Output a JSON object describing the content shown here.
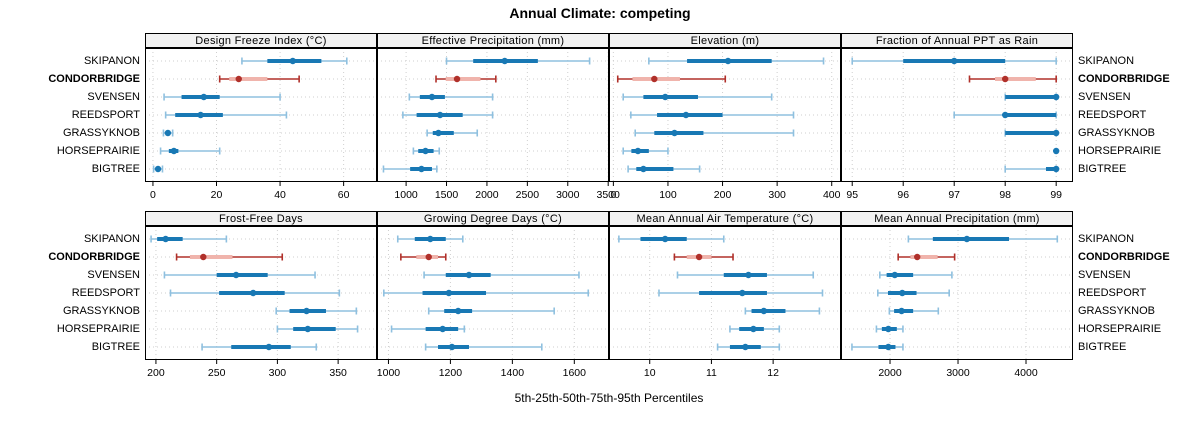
{
  "title": "Annual Climate: competing",
  "footer": "5th-25th-50th-75th-95th Percentiles",
  "sites": [
    {
      "name": "SKIPANON",
      "highlight": false
    },
    {
      "name": "CONDORBRIDGE",
      "highlight": true
    },
    {
      "name": "SVENSEN",
      "highlight": false
    },
    {
      "name": "REEDSPORT",
      "highlight": false
    },
    {
      "name": "GRASSYKNOB",
      "highlight": false
    },
    {
      "name": "HORSEPRAIRIE",
      "highlight": false
    },
    {
      "name": "BIGTREE",
      "highlight": false
    }
  ],
  "colors": {
    "normal_line": "#8FC0DF",
    "normal_band": "#1878B4",
    "normal_dot": "#1878B4",
    "highlight_line": "#B0302A",
    "highlight_band": "#F0B4AC",
    "highlight_dot": "#B0302A",
    "grid": "#CFCFCF",
    "strip_bg": "#F2F2F2",
    "border": "#000000",
    "text": "#000000"
  },
  "chart_data": {
    "type": "dotplot-percentiles",
    "percentiles": [
      5,
      25,
      50,
      75,
      95
    ],
    "site_order": [
      "SKIPANON",
      "CONDORBRIDGE",
      "SVENSEN",
      "REEDSPORT",
      "GRASSYKNOB",
      "HORSEPRAIRIE",
      "BIGTREE"
    ],
    "legend": "median dot with 5-95 range line and 25-75 thick band; CONDORBRIDGE highlighted red",
    "panels": [
      {
        "title": "Design Freeze Index (°C)",
        "xlim": [
          -2.5,
          70.5
        ],
        "ticks": [
          0,
          20,
          40,
          60
        ],
        "values": [
          [
            28,
            36,
            44,
            53,
            61
          ],
          [
            21,
            24,
            27,
            36,
            46
          ],
          [
            3.5,
            9,
            16,
            21,
            40
          ],
          [
            4,
            7,
            15,
            22,
            42
          ],
          [
            3.3,
            4,
            4.7,
            5.5,
            6.2
          ],
          [
            2.4,
            5,
            6.6,
            8,
            21
          ],
          [
            0.2,
            0.8,
            1.6,
            2.3,
            3
          ]
        ]
      },
      {
        "title": "Effective Precipitation (mm)",
        "xlim": [
          640,
          3510
        ],
        "ticks": [
          1000,
          1500,
          2000,
          2500,
          3000,
          3500
        ],
        "values": [
          [
            1500,
            1830,
            2220,
            2630,
            3270
          ],
          [
            1370,
            1490,
            1630,
            1920,
            2110
          ],
          [
            1040,
            1170,
            1320,
            1480,
            2070
          ],
          [
            960,
            1130,
            1420,
            1700,
            2070
          ],
          [
            1260,
            1330,
            1400,
            1590,
            1880
          ],
          [
            1090,
            1150,
            1240,
            1340,
            1410
          ],
          [
            720,
            1050,
            1190,
            1320,
            1380
          ]
        ]
      },
      {
        "title": "Elevation (m)",
        "xlim": [
          -8,
          417
        ],
        "ticks": [
          0,
          100,
          200,
          300,
          400
        ],
        "values": [
          [
            65,
            135,
            210,
            290,
            385
          ],
          [
            8,
            35,
            75,
            122,
            205
          ],
          [
            18,
            55,
            95,
            155,
            290
          ],
          [
            32,
            80,
            133,
            200,
            330
          ],
          [
            40,
            75,
            112,
            165,
            330
          ],
          [
            18,
            33,
            45,
            65,
            100
          ],
          [
            27,
            42,
            55,
            110,
            158
          ]
        ]
      },
      {
        "title": "Fraction of Annual PPT as Rain",
        "xlim": [
          94.78,
          99.33
        ],
        "ticks": [
          95,
          96,
          97,
          98,
          99
        ],
        "values": [
          [
            95,
            96,
            97,
            98,
            99
          ],
          [
            97.3,
            97.8,
            98,
            98.6,
            99
          ],
          [
            98,
            98,
            99,
            99,
            99
          ],
          [
            97,
            98,
            98,
            99,
            99
          ],
          [
            98,
            98,
            99,
            99,
            99
          ],
          [
            99,
            99,
            99,
            99,
            99
          ],
          [
            98,
            98.8,
            99,
            99,
            99
          ]
        ]
      },
      {
        "title": "Frost-Free Days",
        "xlim": [
          191,
          382
        ],
        "ticks": [
          200,
          250,
          300,
          350
        ],
        "values": [
          [
            196,
            201,
            208,
            222,
            258
          ],
          [
            217,
            228,
            239,
            263,
            304
          ],
          [
            207,
            250,
            266,
            292,
            331
          ],
          [
            212,
            252,
            280,
            306,
            351
          ],
          [
            299,
            310,
            324,
            340,
            365
          ],
          [
            300,
            313,
            325,
            348,
            366
          ],
          [
            238,
            262,
            293,
            311,
            332
          ]
        ]
      },
      {
        "title": "Growing Degree Days (°C)",
        "xlim": [
          963,
          1712
        ],
        "ticks": [
          1000,
          1200,
          1400,
          1600
        ],
        "values": [
          [
            1030,
            1085,
            1135,
            1185,
            1240
          ],
          [
            1040,
            1090,
            1130,
            1160,
            1185
          ],
          [
            1115,
            1185,
            1260,
            1330,
            1615
          ],
          [
            985,
            1110,
            1195,
            1315,
            1645
          ],
          [
            1130,
            1180,
            1225,
            1270,
            1535
          ],
          [
            1010,
            1120,
            1175,
            1225,
            1245
          ],
          [
            1120,
            1160,
            1205,
            1260,
            1495
          ]
        ]
      },
      {
        "title": "Mean Annual Air Temperature (°C)",
        "xlim": [
          9.34,
          13.1
        ],
        "ticks": [
          10,
          11,
          12
        ],
        "values": [
          [
            9.5,
            9.85,
            10.25,
            10.6,
            11.2
          ],
          [
            10.4,
            10.6,
            10.8,
            11.0,
            11.35
          ],
          [
            10.45,
            11.2,
            11.6,
            11.9,
            12.65
          ],
          [
            10.15,
            10.8,
            11.5,
            11.9,
            12.8
          ],
          [
            11.55,
            11.65,
            11.85,
            12.2,
            12.75
          ],
          [
            11.3,
            11.45,
            11.68,
            11.85,
            12.1
          ],
          [
            11.1,
            11.3,
            11.55,
            11.8,
            12.1
          ]
        ]
      },
      {
        "title": "Mean Annual Precipitation (mm)",
        "xlim": [
          1279,
          4691
        ],
        "ticks": [
          2000,
          3000,
          4000
        ],
        "values": [
          [
            2270,
            2630,
            3130,
            3750,
            4460
          ],
          [
            2120,
            2300,
            2400,
            2700,
            2950
          ],
          [
            1850,
            1950,
            2070,
            2340,
            2910
          ],
          [
            1820,
            1970,
            2180,
            2390,
            2870
          ],
          [
            1990,
            2060,
            2170,
            2340,
            2710
          ],
          [
            1800,
            1880,
            1975,
            2100,
            2190
          ],
          [
            1440,
            1830,
            1975,
            2080,
            2190
          ]
        ]
      }
    ]
  }
}
